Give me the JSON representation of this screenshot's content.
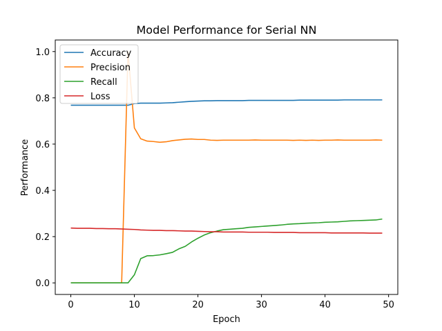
{
  "chart_data": {
    "type": "line",
    "title": "Model Performance for Serial NN",
    "xlabel": "Epoch",
    "ylabel": "Performance",
    "xlim": [
      -2.45,
      51.45
    ],
    "ylim": [
      -0.05,
      1.05
    ],
    "xticks": [
      0,
      10,
      20,
      30,
      40,
      50
    ],
    "yticks": [
      0.0,
      0.2,
      0.4,
      0.6,
      0.8,
      1.0
    ],
    "xtick_labels": [
      "0",
      "10",
      "20",
      "30",
      "40",
      "50"
    ],
    "ytick_labels": [
      "0.0",
      "0.2",
      "0.4",
      "0.6",
      "0.8",
      "1.0"
    ],
    "grid": false,
    "legend_position": "top-left",
    "x": [
      0,
      1,
      2,
      3,
      4,
      5,
      6,
      7,
      8,
      9,
      10,
      11,
      12,
      13,
      14,
      15,
      16,
      17,
      18,
      19,
      20,
      21,
      22,
      23,
      24,
      25,
      26,
      27,
      28,
      29,
      30,
      31,
      32,
      33,
      34,
      35,
      36,
      37,
      38,
      39,
      40,
      41,
      42,
      43,
      44,
      45,
      46,
      47,
      48,
      49
    ],
    "series": [
      {
        "name": "Accuracy",
        "color": "#1f77b4",
        "values": [
          0.768,
          0.768,
          0.768,
          0.768,
          0.768,
          0.768,
          0.768,
          0.768,
          0.768,
          0.768,
          0.775,
          0.777,
          0.777,
          0.777,
          0.777,
          0.778,
          0.779,
          0.781,
          0.783,
          0.785,
          0.786,
          0.787,
          0.787,
          0.788,
          0.788,
          0.788,
          0.788,
          0.788,
          0.789,
          0.789,
          0.789,
          0.789,
          0.789,
          0.789,
          0.789,
          0.789,
          0.79,
          0.79,
          0.79,
          0.79,
          0.79,
          0.79,
          0.79,
          0.791,
          0.791,
          0.791,
          0.791,
          0.791,
          0.791,
          0.791
        ]
      },
      {
        "name": "Precision",
        "color": "#ff7f0e",
        "values": [
          0.0,
          0.0,
          0.0,
          0.0,
          0.0,
          0.0,
          0.0,
          0.0,
          0.0,
          1.0,
          0.67,
          0.623,
          0.613,
          0.611,
          0.608,
          0.61,
          0.615,
          0.618,
          0.621,
          0.622,
          0.62,
          0.62,
          0.617,
          0.616,
          0.617,
          0.617,
          0.617,
          0.617,
          0.617,
          0.618,
          0.617,
          0.617,
          0.617,
          0.617,
          0.617,
          0.616,
          0.617,
          0.616,
          0.617,
          0.616,
          0.617,
          0.617,
          0.618,
          0.617,
          0.617,
          0.617,
          0.617,
          0.617,
          0.618,
          0.617
        ]
      },
      {
        "name": "Recall",
        "color": "#2ca02c",
        "values": [
          0.0,
          0.0,
          0.0,
          0.0,
          0.0,
          0.0,
          0.0,
          0.0,
          0.0,
          0.0,
          0.035,
          0.105,
          0.117,
          0.118,
          0.121,
          0.126,
          0.132,
          0.147,
          0.158,
          0.177,
          0.193,
          0.207,
          0.217,
          0.224,
          0.23,
          0.232,
          0.234,
          0.236,
          0.24,
          0.242,
          0.244,
          0.246,
          0.248,
          0.25,
          0.253,
          0.255,
          0.256,
          0.258,
          0.259,
          0.26,
          0.262,
          0.263,
          0.264,
          0.266,
          0.268,
          0.269,
          0.27,
          0.271,
          0.272,
          0.276
        ]
      },
      {
        "name": "Loss",
        "color": "#d62728",
        "values": [
          0.237,
          0.236,
          0.236,
          0.236,
          0.235,
          0.235,
          0.234,
          0.234,
          0.233,
          0.232,
          0.231,
          0.229,
          0.228,
          0.227,
          0.227,
          0.226,
          0.226,
          0.225,
          0.224,
          0.224,
          0.223,
          0.222,
          0.221,
          0.221,
          0.22,
          0.22,
          0.22,
          0.22,
          0.219,
          0.219,
          0.219,
          0.219,
          0.218,
          0.218,
          0.218,
          0.218,
          0.217,
          0.217,
          0.217,
          0.217,
          0.217,
          0.216,
          0.216,
          0.216,
          0.216,
          0.216,
          0.216,
          0.215,
          0.215,
          0.215
        ]
      }
    ]
  }
}
